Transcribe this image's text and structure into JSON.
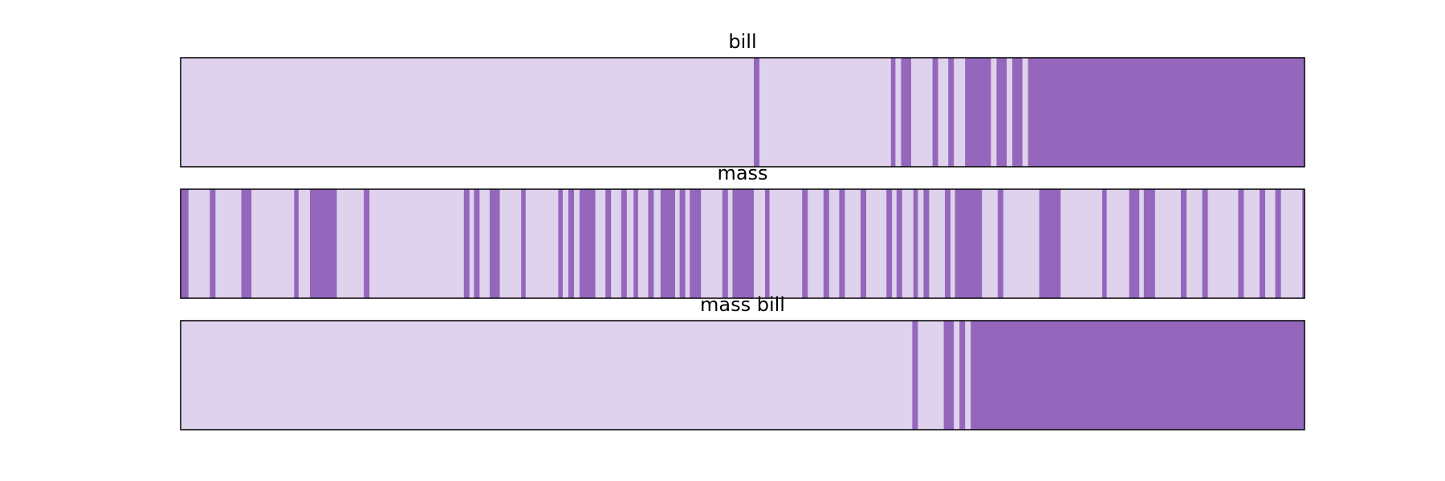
{
  "colors": {
    "light": "#dfd2ec",
    "dark": "#9467bd",
    "frame": "#000000"
  },
  "chart_data": {
    "type": "barcode",
    "x_range": [
      0,
      1
    ],
    "panels": [
      {
        "title": "bill",
        "dark_segments": [
          [
            0.51,
            0.515
          ],
          [
            0.632,
            0.636
          ],
          [
            0.641,
            0.65
          ],
          [
            0.669,
            0.674
          ],
          [
            0.683,
            0.688
          ],
          [
            0.698,
            0.721
          ],
          [
            0.726,
            0.735
          ],
          [
            0.74,
            0.749
          ],
          [
            0.754,
            1.0
          ]
        ]
      },
      {
        "title": "mass",
        "dark_segments": [
          [
            0.0,
            0.007
          ],
          [
            0.026,
            0.031
          ],
          [
            0.054,
            0.063
          ],
          [
            0.101,
            0.105
          ],
          [
            0.115,
            0.139
          ],
          [
            0.163,
            0.168
          ],
          [
            0.252,
            0.257
          ],
          [
            0.261,
            0.266
          ],
          [
            0.275,
            0.284
          ],
          [
            0.303,
            0.307
          ],
          [
            0.336,
            0.34
          ],
          [
            0.345,
            0.35
          ],
          [
            0.355,
            0.369
          ],
          [
            0.378,
            0.383
          ],
          [
            0.392,
            0.397
          ],
          [
            0.403,
            0.407
          ],
          [
            0.416,
            0.421
          ],
          [
            0.427,
            0.44
          ],
          [
            0.444,
            0.449
          ],
          [
            0.453,
            0.463
          ],
          [
            0.482,
            0.487
          ],
          [
            0.491,
            0.51
          ],
          [
            0.52,
            0.524
          ],
          [
            0.553,
            0.558
          ],
          [
            0.572,
            0.577
          ],
          [
            0.586,
            0.591
          ],
          [
            0.605,
            0.61
          ],
          [
            0.628,
            0.633
          ],
          [
            0.637,
            0.642
          ],
          [
            0.652,
            0.656
          ],
          [
            0.661,
            0.666
          ],
          [
            0.68,
            0.685
          ],
          [
            0.689,
            0.713
          ],
          [
            0.727,
            0.732
          ],
          [
            0.764,
            0.783
          ],
          [
            0.82,
            0.824
          ],
          [
            0.844,
            0.853
          ],
          [
            0.857,
            0.867
          ],
          [
            0.89,
            0.895
          ],
          [
            0.909,
            0.914
          ],
          [
            0.941,
            0.946
          ],
          [
            0.96,
            0.965
          ],
          [
            0.974,
            0.979
          ],
          [
            0.998,
            1.0
          ]
        ]
      },
      {
        "title": "mass bill",
        "dark_segments": [
          [
            0.651,
            0.656
          ],
          [
            0.679,
            0.688
          ],
          [
            0.693,
            0.698
          ],
          [
            0.703,
            1.0
          ]
        ]
      }
    ]
  }
}
